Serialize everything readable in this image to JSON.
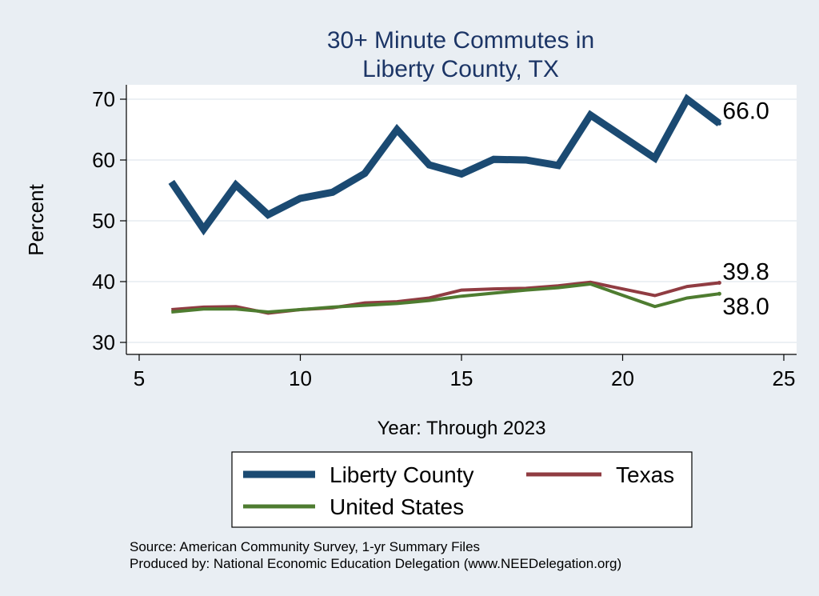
{
  "chart_data": {
    "type": "line",
    "title": [
      "30+ Minute Commutes in",
      "Liberty County, TX"
    ],
    "xlabel": "Year: Through 2023",
    "ylabel": "Percent",
    "xlim": [
      5,
      25
    ],
    "ylim": [
      30,
      70
    ],
    "xticks": [
      5,
      10,
      15,
      20,
      25
    ],
    "yticks": [
      30,
      40,
      50,
      60,
      70
    ],
    "grid": true,
    "legend_placement": "bottom",
    "series": [
      {
        "name": "Liberty County",
        "color": "#1b4a72",
        "end_label": "66.0",
        "x": [
          6,
          7,
          8,
          9,
          10,
          11,
          12,
          13,
          14,
          15,
          16,
          17,
          18,
          19,
          21,
          22,
          23
        ],
        "values": [
          56.4,
          48.6,
          55.9,
          51.0,
          53.7,
          54.7,
          57.8,
          65.0,
          59.2,
          57.7,
          60.1,
          60.0,
          59.1,
          67.4,
          60.3,
          70.0,
          66.0
        ]
      },
      {
        "name": "Texas",
        "color": "#903c42",
        "end_label": "39.8",
        "x": [
          6,
          7,
          8,
          9,
          10,
          11,
          12,
          13,
          14,
          15,
          16,
          17,
          18,
          19,
          21,
          22,
          23
        ],
        "values": [
          35.4,
          35.8,
          35.9,
          34.8,
          35.4,
          35.7,
          36.5,
          36.7,
          37.3,
          38.6,
          38.8,
          38.9,
          39.3,
          39.9,
          37.7,
          39.2,
          39.8
        ]
      },
      {
        "name": "United States",
        "color": "#4e7c30",
        "end_label": "38.0",
        "x": [
          6,
          7,
          8,
          9,
          10,
          11,
          12,
          13,
          14,
          15,
          16,
          17,
          18,
          19,
          21,
          22,
          23
        ],
        "values": [
          35.0,
          35.5,
          35.5,
          35.0,
          35.4,
          35.8,
          36.1,
          36.4,
          36.9,
          37.6,
          38.1,
          38.6,
          39.0,
          39.6,
          35.9,
          37.3,
          38.0
        ]
      }
    ],
    "source": [
      "Source: American Community Survey, 1-yr Summary Files",
      "Produced by: National Economic Education Delegation (www.NEEDelegation.org)"
    ]
  }
}
